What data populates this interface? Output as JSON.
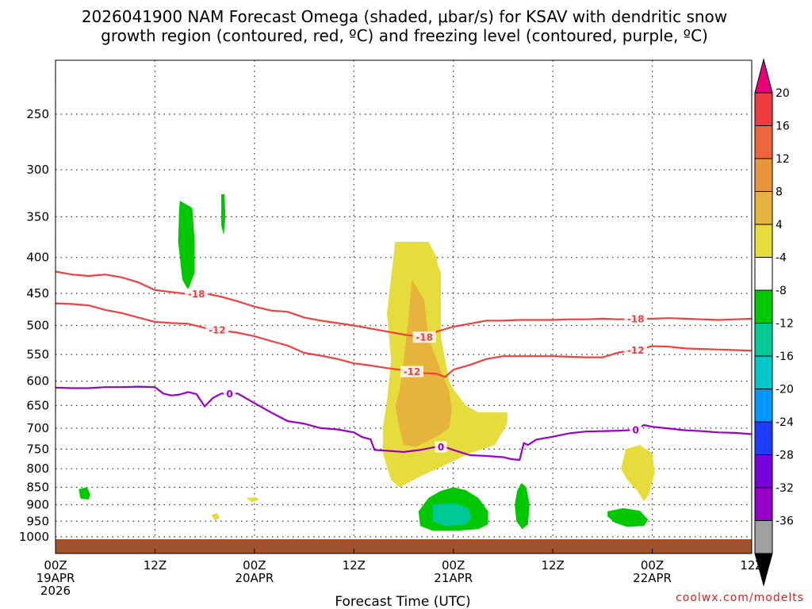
{
  "chart_data": {
    "type": "time-height",
    "title_line1": "2026041900 NAM Forecast Omega (shaded, μbar/s) for KSAV with dendritic snow",
    "title_line2": "growth region (contoured, red, ºC) and freezing level (contoured, purple, ºC)",
    "xlabel": "Forecast Time (UTC)",
    "credit": "coolwx.com/modelts",
    "x_hours_range": [
      0,
      84
    ],
    "x_ticks": [
      {
        "hour": 0,
        "lines": [
          "00Z",
          "19APR",
          "2026"
        ]
      },
      {
        "hour": 12,
        "lines": [
          "12Z"
        ]
      },
      {
        "hour": 24,
        "lines": [
          "00Z",
          "20APR"
        ]
      },
      {
        "hour": 36,
        "lines": [
          "12Z"
        ]
      },
      {
        "hour": 48,
        "lines": [
          "00Z",
          "21APR"
        ]
      },
      {
        "hour": 60,
        "lines": [
          "12Z"
        ]
      },
      {
        "hour": 72,
        "lines": [
          "00Z",
          "22APR"
        ]
      },
      {
        "hour": 84,
        "lines": [
          "12Z"
        ]
      }
    ],
    "y_levels": [
      250,
      300,
      350,
      400,
      450,
      500,
      550,
      600,
      650,
      700,
      750,
      800,
      850,
      900,
      950,
      1000
    ],
    "y_range_hpa": [
      200,
      1025
    ],
    "colorbar": {
      "labels": [
        "20",
        "16",
        "12",
        "8",
        "4",
        "-4",
        "-8",
        "-12",
        "-16",
        "-20",
        "-24",
        "-28",
        "-32",
        "-36"
      ],
      "colors": [
        "#e8007a",
        "#f03c3c",
        "#f0643c",
        "#e8963c",
        "#e6b43c",
        "#e6dc3c",
        "#ffffff",
        "#00c800",
        "#00c896",
        "#00c8c8",
        "#0096ff",
        "#1e3cff",
        "#7800dc",
        "#9600c8",
        "#a0a0a0",
        "#000000"
      ]
    },
    "series": [
      {
        "name": "-18 isotherm",
        "color": "#f04040",
        "label": "-18",
        "points": [
          [
            0,
            419
          ],
          [
            2,
            423
          ],
          [
            4,
            425
          ],
          [
            6,
            423
          ],
          [
            8,
            427
          ],
          [
            10,
            434
          ],
          [
            12,
            445
          ],
          [
            14,
            448
          ],
          [
            16,
            451
          ],
          [
            18,
            450
          ],
          [
            20,
            455
          ],
          [
            22,
            462
          ],
          [
            24,
            470
          ],
          [
            26,
            476
          ],
          [
            28,
            478
          ],
          [
            30,
            487
          ],
          [
            32,
            492
          ],
          [
            34,
            496
          ],
          [
            36,
            500
          ],
          [
            38,
            505
          ],
          [
            40,
            510
          ],
          [
            42,
            515
          ],
          [
            44,
            519
          ],
          [
            45,
            520
          ],
          [
            46,
            510
          ],
          [
            48,
            502
          ],
          [
            50,
            497
          ],
          [
            52,
            492
          ],
          [
            54,
            492
          ],
          [
            56,
            491
          ],
          [
            58,
            491
          ],
          [
            60,
            491
          ],
          [
            62,
            490
          ],
          [
            64,
            490
          ],
          [
            66,
            489
          ],
          [
            68,
            490
          ],
          [
            70,
            489
          ],
          [
            72,
            489
          ],
          [
            74,
            488
          ],
          [
            76,
            489
          ],
          [
            78,
            490
          ],
          [
            80,
            491
          ],
          [
            82,
            490
          ],
          [
            84,
            489
          ]
        ],
        "labels_at": [
          17,
          44.5,
          70
        ]
      },
      {
        "name": "-12 isotherm",
        "color": "#f04040",
        "label": "-12",
        "points": [
          [
            0,
            465
          ],
          [
            2,
            466
          ],
          [
            4,
            468
          ],
          [
            6,
            475
          ],
          [
            8,
            480
          ],
          [
            10,
            487
          ],
          [
            12,
            494
          ],
          [
            14,
            496
          ],
          [
            16,
            497
          ],
          [
            18,
            504
          ],
          [
            20,
            508
          ],
          [
            22,
            512
          ],
          [
            24,
            518
          ],
          [
            26,
            526
          ],
          [
            28,
            534
          ],
          [
            30,
            547
          ],
          [
            32,
            552
          ],
          [
            34,
            558
          ],
          [
            36,
            566
          ],
          [
            38,
            570
          ],
          [
            40,
            575
          ],
          [
            42,
            579
          ],
          [
            44,
            584
          ],
          [
            46,
            586
          ],
          [
            47,
            592
          ],
          [
            48,
            578
          ],
          [
            50,
            569
          ],
          [
            52,
            558
          ],
          [
            54,
            553
          ],
          [
            56,
            553
          ],
          [
            58,
            553
          ],
          [
            60,
            553
          ],
          [
            62,
            554
          ],
          [
            64,
            555
          ],
          [
            66,
            555
          ],
          [
            68,
            546
          ],
          [
            70,
            542
          ],
          [
            72,
            535
          ],
          [
            74,
            536
          ],
          [
            76,
            539
          ],
          [
            78,
            540
          ],
          [
            80,
            541
          ],
          [
            82,
            542
          ],
          [
            84,
            543
          ]
        ],
        "labels_at": [
          19.5,
          43,
          70
        ]
      },
      {
        "name": "0C freezing level",
        "color": "#9a00c8",
        "label": "0",
        "points": [
          [
            0,
            613
          ],
          [
            2,
            614
          ],
          [
            4,
            614
          ],
          [
            6,
            612
          ],
          [
            8,
            612
          ],
          [
            10,
            611
          ],
          [
            12,
            612
          ],
          [
            13,
            625
          ],
          [
            14,
            629
          ],
          [
            15,
            627
          ],
          [
            16,
            622
          ],
          [
            17,
            626
          ],
          [
            18,
            652
          ],
          [
            19,
            634
          ],
          [
            20,
            625
          ],
          [
            22,
            625
          ],
          [
            24,
            645
          ],
          [
            26,
            665
          ],
          [
            28,
            684
          ],
          [
            30,
            690
          ],
          [
            32,
            700
          ],
          [
            34,
            703
          ],
          [
            36,
            710
          ],
          [
            37,
            721
          ],
          [
            38,
            726
          ],
          [
            38.5,
            752
          ],
          [
            40,
            754
          ],
          [
            42,
            757
          ],
          [
            44,
            752
          ],
          [
            46,
            744
          ],
          [
            47,
            745
          ],
          [
            48,
            752
          ],
          [
            50,
            765
          ],
          [
            52,
            767
          ],
          [
            54,
            770
          ],
          [
            55,
            775
          ],
          [
            56,
            777
          ],
          [
            56.5,
            735
          ],
          [
            57,
            740
          ],
          [
            58,
            727
          ],
          [
            60,
            720
          ],
          [
            62,
            712
          ],
          [
            64,
            708
          ],
          [
            66,
            707
          ],
          [
            68,
            706
          ],
          [
            70,
            704
          ],
          [
            71,
            693
          ],
          [
            72,
            697
          ],
          [
            74,
            701
          ],
          [
            76,
            705
          ],
          [
            78,
            707
          ],
          [
            80,
            710
          ],
          [
            82,
            711
          ],
          [
            84,
            714
          ]
        ],
        "labels_at": [
          21,
          46.5,
          70
        ]
      }
    ],
    "shaded_regions": [
      {
        "value_range": "4 to 8",
        "color": "#e6dc3c",
        "desc": "ascent core Apr20 ~17Z-Apr21 ~06Z, 380-850 hPa"
      },
      {
        "value_range": "8 to 12",
        "color": "#e6b43c",
        "desc": "inner ascent core"
      },
      {
        "value_range": "4 to 8",
        "color": "#e6dc3c",
        "desc": "weak ascent Apr21 ~19Z-23Z, 740-900 hPa"
      },
      {
        "value_range": "-4 to -8",
        "color": "#00c800",
        "desc": "subsidence Apr21 ~21Z-Apr22 ~01Z near 900-980 hPa"
      },
      {
        "value_range": "-8 to -12",
        "color": "#00c896",
        "desc": "subsidence core near 00Z 21APR, 900-960 hPa"
      }
    ]
  }
}
